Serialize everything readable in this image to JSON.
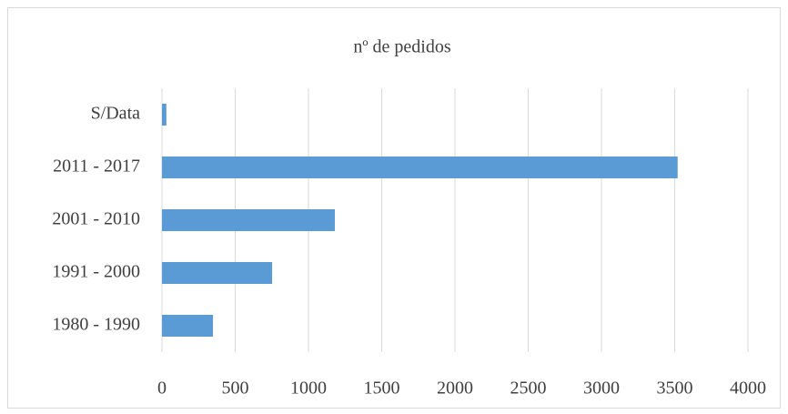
{
  "chart_data": {
    "type": "bar",
    "orientation": "horizontal",
    "title": "nº de pedidos",
    "categories": [
      "S/Data",
      "2011 - 2017",
      "2001 - 2010",
      "1991 - 2000",
      "1980 - 1990"
    ],
    "values": [
      30,
      3520,
      1180,
      752,
      348
    ],
    "color": "#5b9bd5",
    "xlim": [
      0,
      4000
    ],
    "xticks": [
      0,
      500,
      1000,
      1500,
      2000,
      2500,
      3000,
      3500,
      4000
    ],
    "grid": true
  }
}
